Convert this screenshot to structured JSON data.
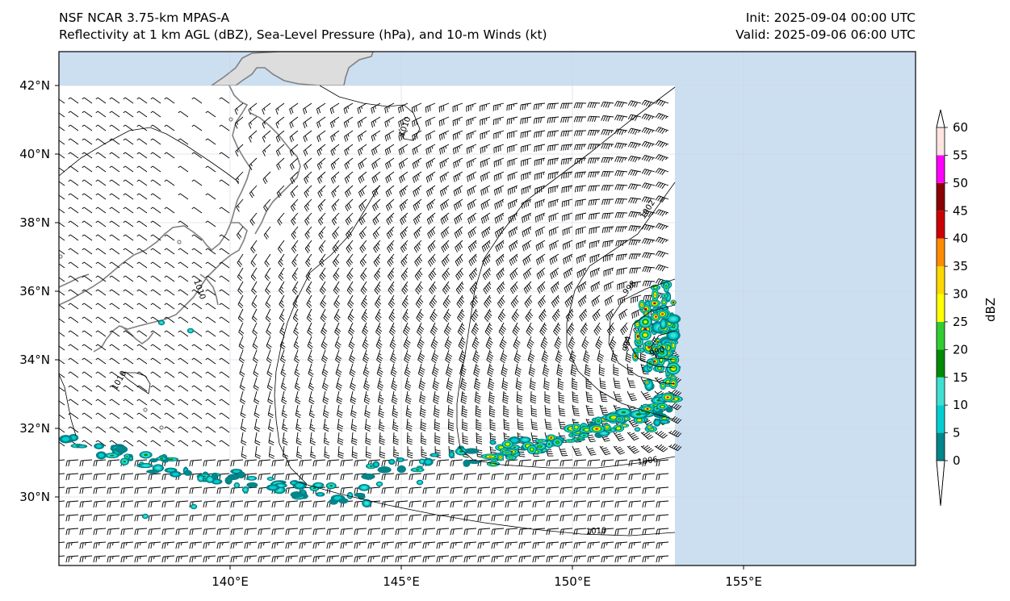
{
  "title": {
    "left_line1": "NSF NCAR 3.75-km MPAS-A",
    "left_line2": "Reflectivity at 1 km AGL (dBZ), Sea-Level Pressure (hPa), and 10-m Winds (kt)",
    "right_line1": "Init: 2025-09-04 00:00 UTC",
    "right_line2": "Valid: 2025-09-06 06:00 UTC"
  },
  "axes": {
    "lon_ticks": [
      {
        "value": 140,
        "label": "140°E"
      },
      {
        "value": 145,
        "label": "145°E"
      },
      {
        "value": 150,
        "label": "150°E"
      },
      {
        "value": 155,
        "label": "155°E"
      }
    ],
    "lat_ticks": [
      {
        "value": 42,
        "label": "42°N"
      },
      {
        "value": 40,
        "label": "40°N"
      },
      {
        "value": 38,
        "label": "38°N"
      },
      {
        "value": 36,
        "label": "36°N"
      },
      {
        "value": 34,
        "label": "34°N"
      },
      {
        "value": 32,
        "label": "32°N"
      },
      {
        "value": 30,
        "label": "30°N"
      }
    ],
    "lon_range": [
      135.0,
      160.0
    ],
    "lat_range": [
      28.0,
      43.0
    ],
    "grid": true
  },
  "colorbar": {
    "label": "dBZ",
    "levels": [
      0,
      5,
      10,
      15,
      20,
      25,
      30,
      35,
      40,
      45,
      50,
      55,
      60
    ],
    "colors": [
      "#00868b",
      "#00ced1",
      "#40e0d0",
      "#008b00",
      "#32cd32",
      "#ffff00",
      "#ffd700",
      "#ff8c00",
      "#cd0000",
      "#8b0000",
      "#ff00ff",
      "#ffe4e1"
    ],
    "extend": "both"
  },
  "colors": {
    "ocean": "#ccdff1",
    "land": "#dddddd",
    "coastline": "#808080",
    "domain_fill": "#ffffff"
  },
  "pressure_contours": [
    {
      "label": "1010"
    },
    {
      "label": "1010"
    },
    {
      "label": "1010"
    },
    {
      "label": "1010"
    },
    {
      "label": "1006"
    },
    {
      "label": "1002"
    },
    {
      "label": "998"
    },
    {
      "label": "994"
    },
    {
      "label": "990"
    }
  ]
}
